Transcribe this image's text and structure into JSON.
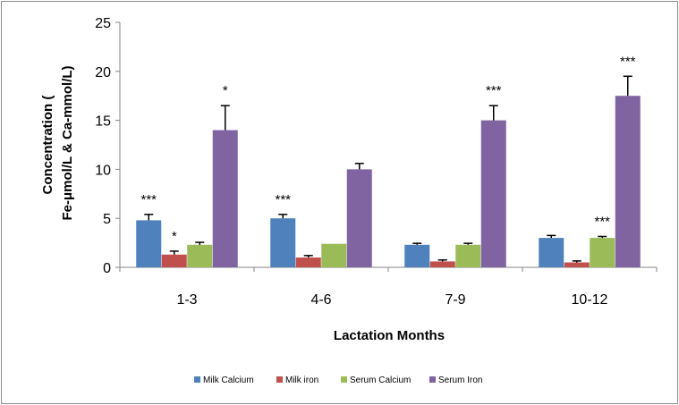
{
  "chart_data": {
    "type": "bar",
    "title": "",
    "xlabel": "Lactation Months",
    "ylabel_lines": [
      "Concentration (",
      "Fe-μmol/L & Ca-mmol/L)"
    ],
    "categories": [
      "1-3",
      "4-6",
      "7-9",
      "10-12"
    ],
    "ylim": [
      0,
      25
    ],
    "yticks": [
      0,
      5,
      10,
      15,
      20,
      25
    ],
    "grid": false,
    "legend_position": "bottom",
    "series": [
      {
        "name": "Milk Calcium",
        "color": "#4F81BD",
        "values": [
          4.8,
          5.0,
          2.3,
          3.0
        ],
        "errors": [
          0.6,
          0.4,
          0.15,
          0.25
        ],
        "annotations": [
          "***",
          "***",
          "",
          ""
        ]
      },
      {
        "name": "Milk iron",
        "color": "#C0504D",
        "values": [
          1.3,
          1.0,
          0.6,
          0.5
        ],
        "errors": [
          0.35,
          0.2,
          0.15,
          0.15
        ],
        "annotations": [
          "*",
          "",
          "",
          ""
        ]
      },
      {
        "name": "Serum Calcium",
        "color": "#9BBB59",
        "values": [
          2.3,
          2.4,
          2.3,
          3.0
        ],
        "errors": [
          0.25,
          0.0,
          0.15,
          0.15
        ],
        "annotations": [
          "",
          "",
          "",
          "***"
        ]
      },
      {
        "name": "Serum Iron",
        "color": "#8064A2",
        "values": [
          14.0,
          10.0,
          15.0,
          17.5
        ],
        "errors": [
          2.5,
          0.6,
          1.5,
          2.0
        ],
        "annotations": [
          "*",
          "",
          "***",
          "***"
        ]
      }
    ]
  }
}
